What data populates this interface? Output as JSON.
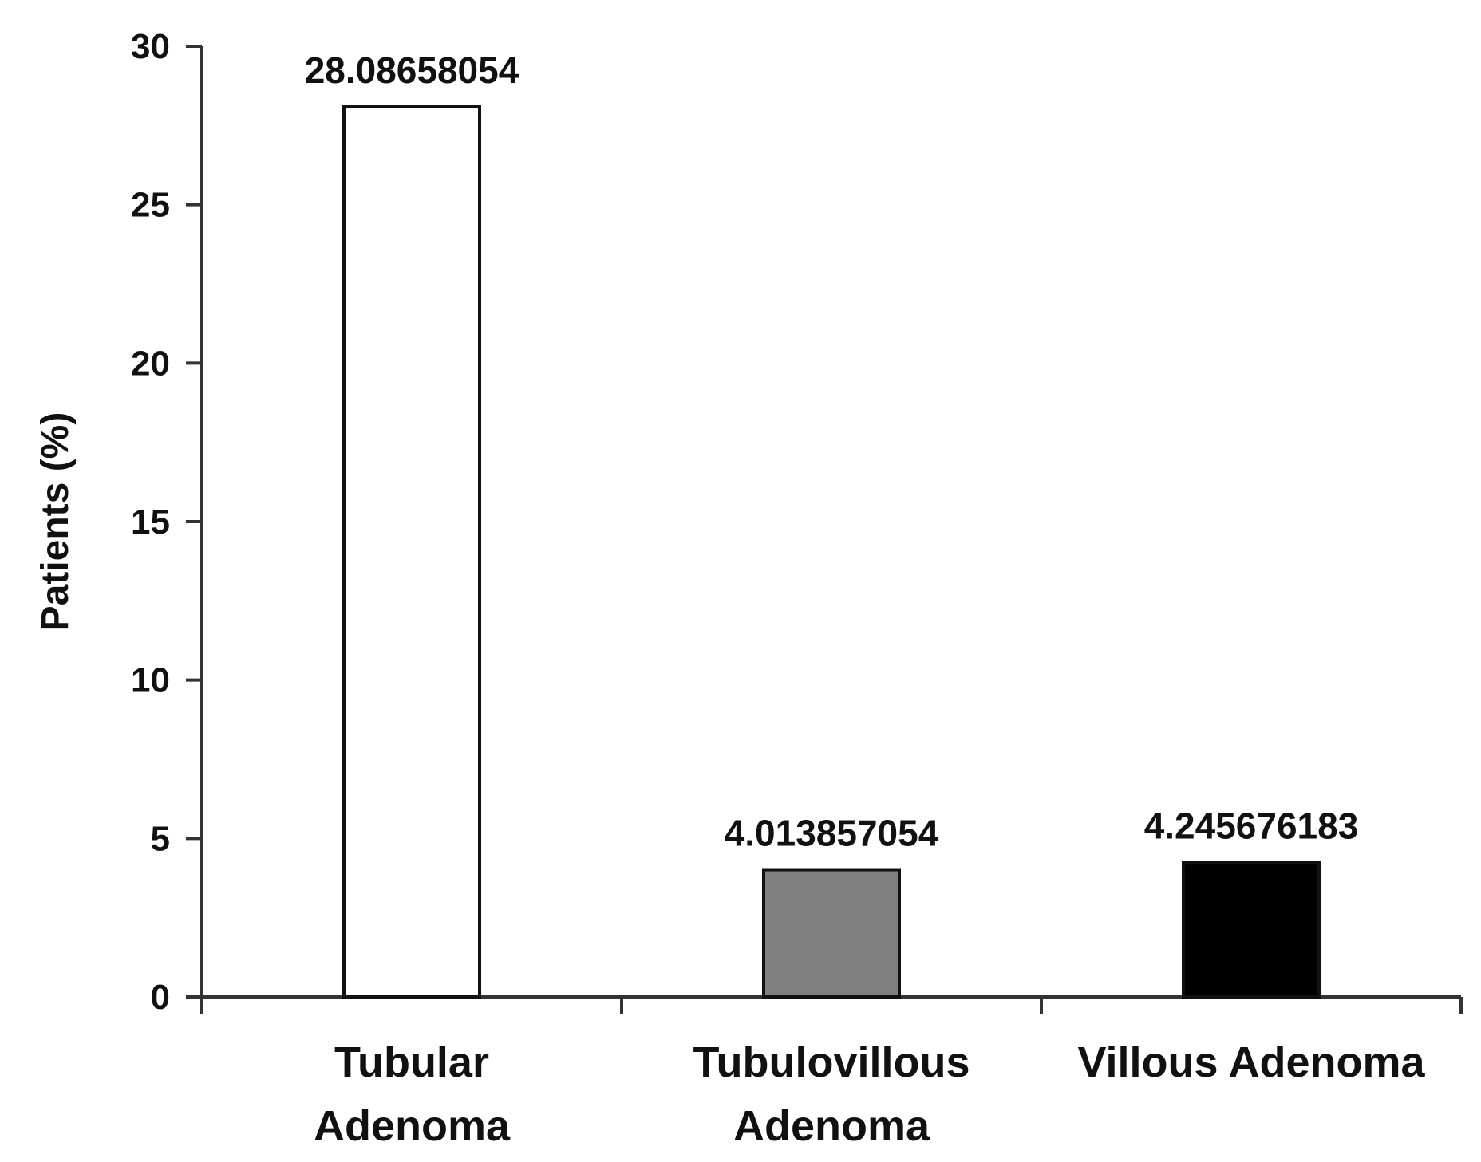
{
  "chart_data": {
    "type": "bar",
    "categories": [
      [
        "Tubular",
        "Adenoma"
      ],
      [
        "Tubulovillous",
        "Adenoma"
      ],
      [
        "Villous Adenoma"
      ]
    ],
    "values": [
      28.08658054,
      4.013857054,
      4.245676183
    ],
    "data_labels": [
      "28.08658054",
      "4.013857054",
      "4.245676183"
    ],
    "bar_colors": [
      "#ffffff",
      "#808080",
      "#000000"
    ],
    "bar_stroke": "#111111",
    "title": "",
    "xlabel": "",
    "ylabel": "Patients (%)",
    "ylim": [
      0,
      30
    ],
    "yticks": [
      0,
      5,
      10,
      15,
      20,
      25,
      30
    ],
    "grid": false,
    "legend": "none"
  }
}
